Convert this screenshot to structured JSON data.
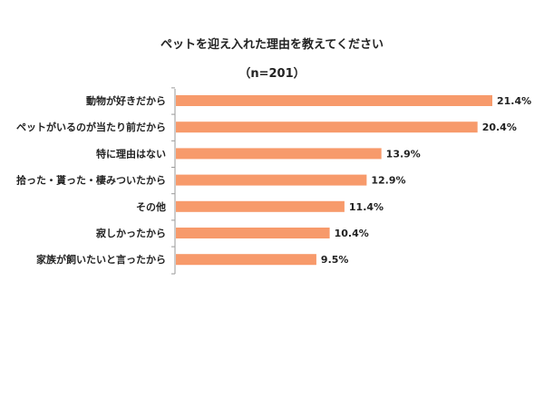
{
  "chart_data": {
    "type": "bar",
    "orientation": "horizontal",
    "title": "ペットを迎え入れた理由を教えてください",
    "subtitle": "（n=201）",
    "categories": [
      "動物が好きだから",
      "ペットがいるのが当たり前だから",
      "特に理由はない",
      "拾った・貰った・棲みついたから",
      "その他",
      "寂しかったから",
      "家族が飼いたいと言ったから"
    ],
    "values": [
      21.4,
      20.4,
      13.9,
      12.9,
      11.4,
      10.4,
      9.5
    ],
    "value_labels": [
      "21.4%",
      "20.4%",
      "13.9%",
      "12.9%",
      "11.4%",
      "10.4%",
      "9.5%"
    ],
    "unit": "%",
    "xlim": [
      0,
      25
    ],
    "grid": false,
    "legend": "none",
    "bar_color": "#F79A6B"
  }
}
